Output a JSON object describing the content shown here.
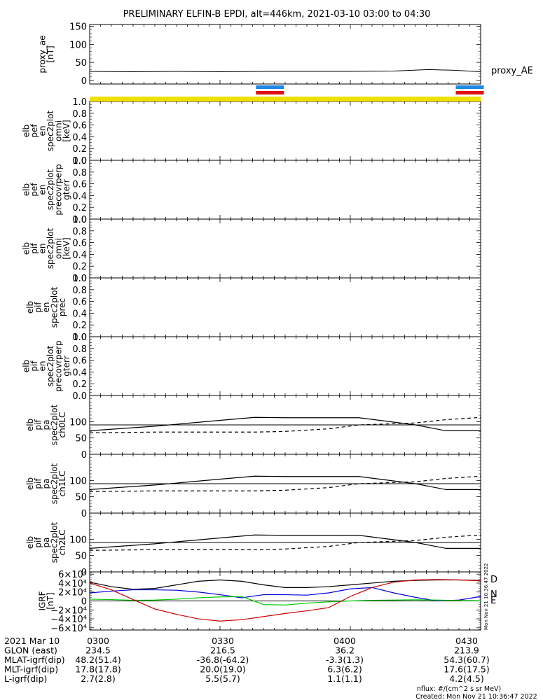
{
  "title": "PRELIMINARY ELFIN-B EPDI, alt=446km, 2021-03-10 03:00 to 04:30",
  "chart_data": [
    {
      "type": "line",
      "id": "proxy_ae",
      "ylabel": [
        "proxy_ae",
        "[nT]"
      ],
      "series_label": "proxy_AE",
      "ylim": [
        -10,
        155
      ],
      "yticks": [
        0,
        50,
        100,
        150
      ],
      "yticklabels": [
        "0",
        "50",
        "100",
        "150"
      ],
      "x_minutes": [
        0,
        10,
        20,
        30,
        40,
        50,
        60,
        70,
        78,
        84,
        90
      ],
      "values": [
        25,
        24,
        25,
        24,
        25,
        25,
        25,
        26,
        30,
        28,
        24
      ]
    },
    {
      "type": "spectrogram",
      "id": "pef_en_spec2plot_omni",
      "ylabel": [
        "elb",
        "pef",
        "en",
        "spec2plot",
        "omni",
        "[keV]"
      ],
      "ylim": [
        0,
        1
      ],
      "yticklabels": [
        "0.0",
        "0.2",
        "0.4",
        "0.6",
        "0.8",
        "1.0"
      ]
    },
    {
      "type": "spectrogram",
      "id": "pef_en_spec2plot_precovrperp_gterr",
      "ylabel": [
        "elb",
        "pef",
        "en",
        "spec2plot",
        "precovrperp",
        "gterr"
      ],
      "ylim": [
        0,
        1
      ],
      "yticklabels": [
        "0.0",
        "0.2",
        "0.4",
        "0.6",
        "0.8",
        "1.0"
      ]
    },
    {
      "type": "spectrogram",
      "id": "pif_en_spec2plot_omni",
      "ylabel": [
        "elb",
        "pif",
        "en",
        "spec2plot",
        "omni",
        "[keV]"
      ],
      "ylim": [
        0,
        1
      ],
      "yticklabels": [
        "0.0",
        "0.2",
        "0.4",
        "0.6",
        "0.8",
        "1.0"
      ]
    },
    {
      "type": "spectrogram",
      "id": "pif_en_spec2plot_prec",
      "ylabel": [
        "elb",
        "pif",
        "en",
        "spec2plot",
        "prec"
      ],
      "ylim": [
        0,
        1
      ],
      "yticklabels": [
        "0.0",
        "0.2",
        "0.4",
        "0.6",
        "0.8",
        "1.0"
      ]
    },
    {
      "type": "spectrogram",
      "id": "pif_en_spec2plot_precovrperp_gterr",
      "ylabel": [
        "elb",
        "pif",
        "en",
        "spec2plot",
        "precovrperp",
        "gterr"
      ],
      "ylim": [
        0,
        1
      ],
      "yticklabels": [
        "0.0",
        "0.2",
        "0.4",
        "0.6",
        "0.8",
        "1.0"
      ]
    },
    {
      "type": "line",
      "id": "pif_pa_spec2plot_ch0LC",
      "ylabel": [
        "elb",
        "pif",
        "pa",
        "spec2plot",
        "ch0LC"
      ],
      "ylim": [
        0,
        180
      ],
      "yticks": [
        0,
        50,
        100
      ],
      "yticklabels": [
        "0",
        "50",
        "100"
      ],
      "hline": 90,
      "x_minutes": [
        0,
        15,
        30,
        38,
        45,
        55,
        62,
        75,
        82,
        90
      ],
      "series": [
        {
          "name": "",
          "style": "solid",
          "values": [
            72,
            86,
            104,
            113,
            112,
            112,
            112,
            90,
            72,
            72
          ]
        },
        {
          "name": "",
          "style": "dashed",
          "values": [
            66,
            68,
            68,
            68,
            70,
            78,
            90,
            96,
            106,
            113
          ]
        }
      ]
    },
    {
      "type": "line",
      "id": "pif_pa_spec2plot_ch1LC",
      "ylabel": [
        "elb",
        "pif",
        "pa",
        "spec2plot",
        "ch1LC"
      ],
      "ylim": [
        0,
        180
      ],
      "yticks": [
        0,
        50,
        100
      ],
      "yticklabels": [
        "0",
        "50",
        "100"
      ],
      "hline": 90,
      "x_minutes": [
        0,
        15,
        30,
        38,
        45,
        55,
        62,
        75,
        82,
        90
      ],
      "series": [
        {
          "name": "",
          "style": "solid",
          "values": [
            72,
            86,
            104,
            113,
            112,
            112,
            112,
            90,
            72,
            72
          ]
        },
        {
          "name": "",
          "style": "dashed",
          "values": [
            66,
            68,
            68,
            68,
            70,
            78,
            90,
            96,
            106,
            113
          ]
        }
      ]
    },
    {
      "type": "line",
      "id": "pif_pa_spec2plot_ch2LC",
      "ylabel": [
        "elb",
        "pif",
        "pa",
        "spec2plot",
        "ch2LC"
      ],
      "ylim": [
        0,
        180
      ],
      "yticks": [
        0,
        50,
        100
      ],
      "yticklabels": [
        "0",
        "50",
        "100"
      ],
      "hline": 90,
      "x_minutes": [
        0,
        15,
        30,
        38,
        45,
        55,
        62,
        75,
        82,
        90
      ],
      "series": [
        {
          "name": "",
          "style": "solid",
          "values": [
            72,
            86,
            104,
            113,
            112,
            112,
            112,
            90,
            72,
            72
          ]
        },
        {
          "name": "",
          "style": "dashed",
          "values": [
            66,
            68,
            68,
            68,
            70,
            78,
            90,
            96,
            106,
            113
          ]
        }
      ]
    },
    {
      "type": "line",
      "id": "igrf",
      "ylabel": [
        "IGRF",
        "[nT]"
      ],
      "ylim": [
        -65000,
        65000
      ],
      "yticks": [
        -60000,
        -40000,
        -20000,
        0,
        20000,
        40000,
        60000
      ],
      "yticklabels": [
        "−6×10⁴",
        "−4×10⁴",
        "−2×10⁴",
        "0",
        "2×10⁴",
        "4×10⁴",
        "6×10⁴"
      ],
      "x_minutes": [
        0,
        5,
        10,
        15,
        20,
        25,
        30,
        35,
        40,
        45,
        50,
        55,
        60,
        65,
        70,
        75,
        80,
        85,
        90
      ],
      "series": [
        {
          "name": "D",
          "color": "#000000",
          "values": [
            42000,
            32000,
            26000,
            28000,
            36000,
            44000,
            47000,
            44000,
            36000,
            30000,
            30000,
            32000,
            36000,
            40000,
            44000,
            46000,
            47000,
            47000,
            46000
          ]
        },
        {
          "name": "N",
          "color": "#0000dd",
          "values": [
            18000,
            22000,
            25000,
            25000,
            24000,
            20000,
            14000,
            7000,
            14000,
            14000,
            13000,
            18000,
            27000,
            30000,
            18000,
            8000,
            0,
            2000,
            10000
          ]
        },
        {
          "name": "E",
          "color": "#00cc00",
          "values": [
            4000,
            3000,
            1500,
            2000,
            4000,
            7000,
            9000,
            10000,
            -8000,
            -9000,
            -5000,
            -2000,
            0,
            1500,
            2000,
            2500,
            2000,
            1000,
            500
          ]
        },
        {
          "name": "",
          "color": "#cc0000",
          "values": [
            40000,
            25000,
            3000,
            -18000,
            -30000,
            -40000,
            -45000,
            -42000,
            -35000,
            -28000,
            -22000,
            -15000,
            10000,
            30000,
            42000,
            47000,
            48000,
            47000,
            45000
          ]
        }
      ]
    }
  ],
  "xaxis": {
    "rows": [
      {
        "label": "2021 Mar 10",
        "values": [
          "0300",
          "0330",
          "0400",
          "0430"
        ]
      },
      {
        "label": "GLON (east)",
        "values": [
          "234.5",
          "216.5",
          "36.2",
          "213.9"
        ]
      },
      {
        "label": "MLAT-igrf(dip)",
        "values": [
          "48.2(51.4)",
          "-36.8(-64.2)",
          "-3.3(1.3)",
          "54.3(60.7)"
        ]
      },
      {
        "label": "MLT-igrf(dip)",
        "values": [
          "17.8(17.8)",
          "20.0(19.0)",
          "6.3(6.2)",
          "17.6(17.5)"
        ]
      },
      {
        "label": "L-igrf(dip)",
        "values": [
          "2.7(2.8)",
          "5.5(5.7)",
          "1.1(1.1)",
          "4.2(4.5)"
        ]
      }
    ]
  },
  "footer": {
    "units": "nflux: #/(cm^2 s sr MeV)",
    "created": "Created: Mon Nov 21 10:36:47 2022",
    "side_stamp": "Mon Nov 21 10:36:47 2022"
  },
  "colors": {
    "status_bar": "#f0e000",
    "marker_blue": "#1e88e5",
    "marker_red": "#e01010"
  },
  "status_markers": [
    {
      "minutes": 41.5
    },
    {
      "minutes": 87.5
    }
  ]
}
